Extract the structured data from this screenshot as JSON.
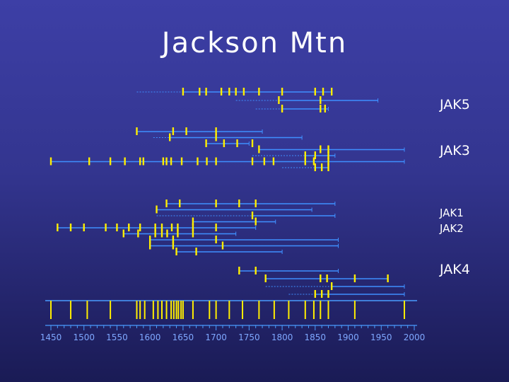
{
  "title": "Jackson Mtn",
  "colors": {
    "background": "#33358f",
    "title": "#ffffff",
    "span_line": "#3f8fff",
    "bar": "#ffee00",
    "axis": "#4a9cff",
    "tick_label": "#7fa8ff"
  },
  "chart_data": {
    "type": "timeline",
    "title": "Jackson Mtn",
    "xlabel": "",
    "ylabel": "",
    "xlim": [
      1450,
      2000
    ],
    "x_ticks": [
      1450,
      1500,
      1550,
      1600,
      1650,
      1700,
      1750,
      1800,
      1850,
      1900,
      1950,
      2000
    ],
    "tick_labels": [
      "1450",
      "1500",
      "1550",
      "1600",
      "1650",
      "1700",
      "1750",
      "1800",
      "1850",
      "1900",
      "1950",
      "2000"
    ],
    "grid": false,
    "legend": "none",
    "groups": [
      {
        "name": "JAK5",
        "series": [
          {
            "start": 1580,
            "pith": 1650,
            "end": 1875,
            "marks": [
              1650,
              1675,
              1685,
              1708,
              1720,
              1730,
              1742,
              1765,
              1800,
              1850,
              1862,
              1875
            ]
          },
          {
            "start": 1730,
            "pith": 1795,
            "end": 1945,
            "marks": [
              1795,
              1858
            ]
          },
          {
            "start": 1760,
            "pith": 1800,
            "end": 1870,
            "marks": [
              1800,
              1858,
              1865
            ]
          }
        ]
      },
      {
        "name": "JAK3",
        "series": [
          {
            "start": 1580,
            "pith": 1580,
            "end": 1770,
            "marks": [
              1580,
              1635,
              1655,
              1700
            ]
          },
          {
            "start": 1605,
            "pith": 1630,
            "end": 1830,
            "marks": [
              1630,
              1700
            ]
          },
          {
            "start": 1685,
            "pith": 1685,
            "end": 1750,
            "marks": [
              1685,
              1712,
              1732,
              1755
            ]
          },
          {
            "start": 1765,
            "pith": 1765,
            "end": 1985,
            "marks": [
              1765,
              1858,
              1870
            ]
          },
          {
            "start": 1755,
            "pith": 1835,
            "end": 1880,
            "marks": [
              1835,
              1850,
              1870
            ]
          },
          {
            "start": 1450,
            "pith": 1450,
            "end": 1985,
            "marks": [
              1450,
              1508,
              1540,
              1562,
              1585,
              1590,
              1620,
              1625,
              1632,
              1648,
              1672,
              1686,
              1700,
              1755,
              1773,
              1787,
              1835,
              1848,
              1870
            ]
          },
          {
            "start": 1800,
            "pith": 1850,
            "end": 1870,
            "marks": [
              1850,
              1860,
              1870
            ]
          }
        ]
      },
      {
        "name": "JAK1\nJAK2",
        "series": [
          {
            "start": 1625,
            "pith": 1625,
            "end": 1880,
            "marks": [
              1625,
              1645,
              1700,
              1735,
              1760
            ]
          },
          {
            "start": 1610,
            "pith": 1610,
            "end": 1845,
            "marks": [
              1610
            ]
          },
          {
            "start": 1610,
            "pith": 1755,
            "end": 1880,
            "marks": [
              1755
            ]
          },
          {
            "start": 1665,
            "pith": 1665,
            "end": 1790,
            "marks": [
              1665,
              1760
            ]
          },
          {
            "start": 1460,
            "pith": 1460,
            "end": 1760,
            "marks": [
              1460,
              1480,
              1500,
              1533,
              1550,
              1568,
              1585,
              1608,
              1618,
              1633,
              1642,
              1665,
              1700
            ]
          },
          {
            "start": 1560,
            "pith": 1560,
            "end": 1730,
            "marks": [
              1560,
              1582,
              1608,
              1618,
              1626,
              1642,
              1665
            ]
          },
          {
            "start": 1600,
            "pith": 1600,
            "end": 1885,
            "marks": [
              1600,
              1635,
              1700
            ]
          },
          {
            "start": 1600,
            "pith": 1600,
            "end": 1885,
            "marks": [
              1600,
              1635,
              1710
            ]
          },
          {
            "start": 1640,
            "pith": 1640,
            "end": 1800,
            "marks": [
              1640,
              1670
            ]
          }
        ]
      },
      {
        "name": "JAK4",
        "series": [
          {
            "start": 1735,
            "pith": 1735,
            "end": 1885,
            "marks": [
              1735,
              1760
            ]
          },
          {
            "start": 1775,
            "pith": 1775,
            "end": 1960,
            "marks": [
              1775,
              1858,
              1868,
              1910,
              1960
            ]
          },
          {
            "start": 1775,
            "pith": 1875,
            "end": 1985,
            "marks": [
              1875
            ]
          },
          {
            "start": 1810,
            "pith": 1850,
            "end": 1985,
            "marks": [
              1850,
              1860,
              1870
            ]
          }
        ]
      }
    ],
    "composite_marks": [
      1450,
      1480,
      1505,
      1540,
      1580,
      1585,
      1592,
      1605,
      1612,
      1618,
      1625,
      1632,
      1636,
      1640,
      1643,
      1647,
      1650,
      1665,
      1690,
      1700,
      1720,
      1740,
      1765,
      1788,
      1810,
      1835,
      1848,
      1858,
      1870,
      1910,
      1985
    ]
  },
  "labels": {
    "jak5": "JAK5",
    "jak3": "JAK3",
    "jak12": "JAK1\nJAK2",
    "jak4": "JAK4"
  }
}
